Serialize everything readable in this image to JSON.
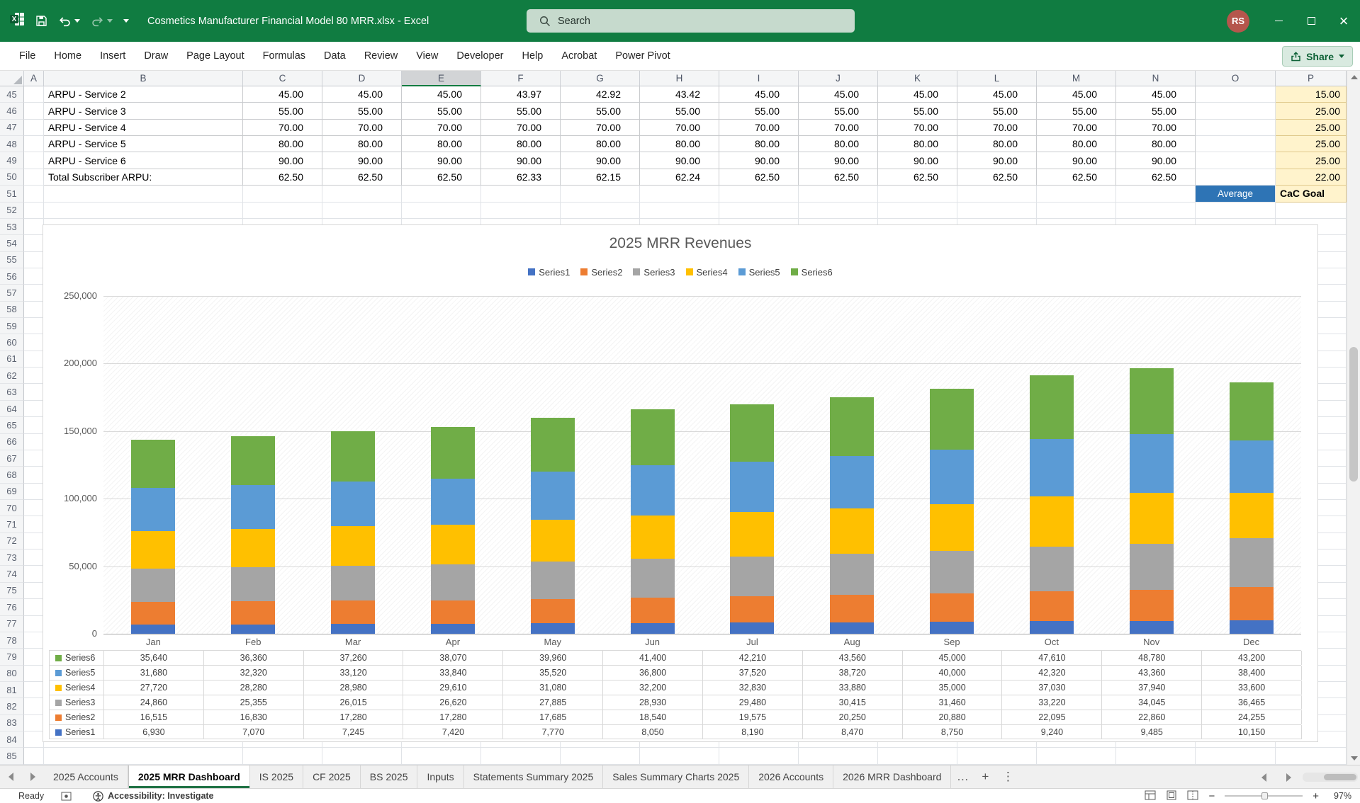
{
  "title_bar": {
    "title": "Cosmetics Manufacturer Financial Model 80 MRR.xlsx  -  Excel",
    "search_placeholder": "Search",
    "avatar_initials": "RS"
  },
  "ribbon": {
    "tabs": [
      "File",
      "Home",
      "Insert",
      "Draw",
      "Page Layout",
      "Formulas",
      "Data",
      "Review",
      "View",
      "Developer",
      "Help",
      "Acrobat",
      "Power Pivot"
    ],
    "share_label": "Share"
  },
  "grid": {
    "columns": [
      "A",
      "B",
      "C",
      "D",
      "E",
      "F",
      "G",
      "H",
      "I",
      "J",
      "K",
      "L",
      "M",
      "N",
      "O",
      "P"
    ],
    "selected_column": "E",
    "first_row": 45,
    "last_row": 85,
    "rows": [
      {
        "num": 45,
        "label": "ARPU - Service 2",
        "values": [
          "45.00",
          "45.00",
          "45.00",
          "43.97",
          "42.92",
          "43.42",
          "45.00",
          "45.00",
          "45.00",
          "45.00",
          "45.00",
          "45.00"
        ],
        "p": "15.00"
      },
      {
        "num": 46,
        "label": "ARPU - Service 3",
        "values": [
          "55.00",
          "55.00",
          "55.00",
          "55.00",
          "55.00",
          "55.00",
          "55.00",
          "55.00",
          "55.00",
          "55.00",
          "55.00",
          "55.00"
        ],
        "p": "25.00"
      },
      {
        "num": 47,
        "label": "ARPU - Service 4",
        "values": [
          "70.00",
          "70.00",
          "70.00",
          "70.00",
          "70.00",
          "70.00",
          "70.00",
          "70.00",
          "70.00",
          "70.00",
          "70.00",
          "70.00"
        ],
        "p": "25.00"
      },
      {
        "num": 48,
        "label": "ARPU - Service 5",
        "values": [
          "80.00",
          "80.00",
          "80.00",
          "80.00",
          "80.00",
          "80.00",
          "80.00",
          "80.00",
          "80.00",
          "80.00",
          "80.00",
          "80.00"
        ],
        "p": "25.00"
      },
      {
        "num": 49,
        "label": "ARPU - Service 6",
        "values": [
          "90.00",
          "90.00",
          "90.00",
          "90.00",
          "90.00",
          "90.00",
          "90.00",
          "90.00",
          "90.00",
          "90.00",
          "90.00",
          "90.00"
        ],
        "p": "25.00"
      },
      {
        "num": 50,
        "label": "Total Subscriber ARPU:",
        "values": [
          "62.50",
          "62.50",
          "62.50",
          "62.33",
          "62.15",
          "62.24",
          "62.50",
          "62.50",
          "62.50",
          "62.50",
          "62.50",
          "62.50"
        ],
        "p": "22.00"
      }
    ],
    "average_label": "Average",
    "cac_goal_label": "CaC Goal"
  },
  "chart_data": {
    "type": "bar",
    "stacked": true,
    "title": "2025 MRR Revenues",
    "categories": [
      "Jan",
      "Feb",
      "Mar",
      "Apr",
      "May",
      "Jun",
      "Jul",
      "Aug",
      "Sep",
      "Oct",
      "Nov",
      "Dec"
    ],
    "series": [
      {
        "name": "Series1",
        "color": "#4472C4",
        "values": [
          6930,
          7070,
          7245,
          7420,
          7770,
          8050,
          8190,
          8470,
          8750,
          9240,
          9485,
          10150
        ]
      },
      {
        "name": "Series2",
        "color": "#ED7D31",
        "values": [
          16515,
          16830,
          17280,
          17280,
          17685,
          18540,
          19575,
          20250,
          20880,
          22095,
          22860,
          24255
        ]
      },
      {
        "name": "Series3",
        "color": "#A5A5A5",
        "values": [
          24860,
          25355,
          26015,
          26620,
          27885,
          28930,
          29480,
          30415,
          31460,
          33220,
          34045,
          36465
        ]
      },
      {
        "name": "Series4",
        "color": "#FFC000",
        "values": [
          27720,
          28280,
          28980,
          29610,
          31080,
          32200,
          32830,
          33880,
          35000,
          37030,
          37940,
          33600
        ]
      },
      {
        "name": "Series5",
        "color": "#5B9BD5",
        "values": [
          31680,
          32320,
          33120,
          33840,
          35520,
          36800,
          37520,
          38720,
          40000,
          42320,
          43360,
          38400
        ]
      },
      {
        "name": "Series6",
        "color": "#70AD47",
        "values": [
          35640,
          36360,
          37260,
          38070,
          39960,
          41400,
          42210,
          43560,
          45000,
          47610,
          48780,
          43200
        ]
      }
    ],
    "ylim": [
      0,
      250000
    ],
    "ytick_interval": 50000,
    "legend_position": "top",
    "grid": true,
    "data_table": true
  },
  "sheet_tabs": {
    "tabs": [
      "2025 Accounts",
      "2025 MRR Dashboard",
      "IS 2025",
      "CF 2025",
      "BS 2025",
      "Inputs",
      "Statements Summary 2025",
      "Sales Summary Charts 2025",
      "2026 Accounts",
      "2026 MRR Dashboard"
    ],
    "active": "2025 MRR Dashboard",
    "more_label": "…",
    "add_label": "+",
    "options_label": "⋮"
  },
  "status_bar": {
    "mode": "Ready",
    "accessibility": "Accessibility: Investigate",
    "zoom": "97%"
  }
}
